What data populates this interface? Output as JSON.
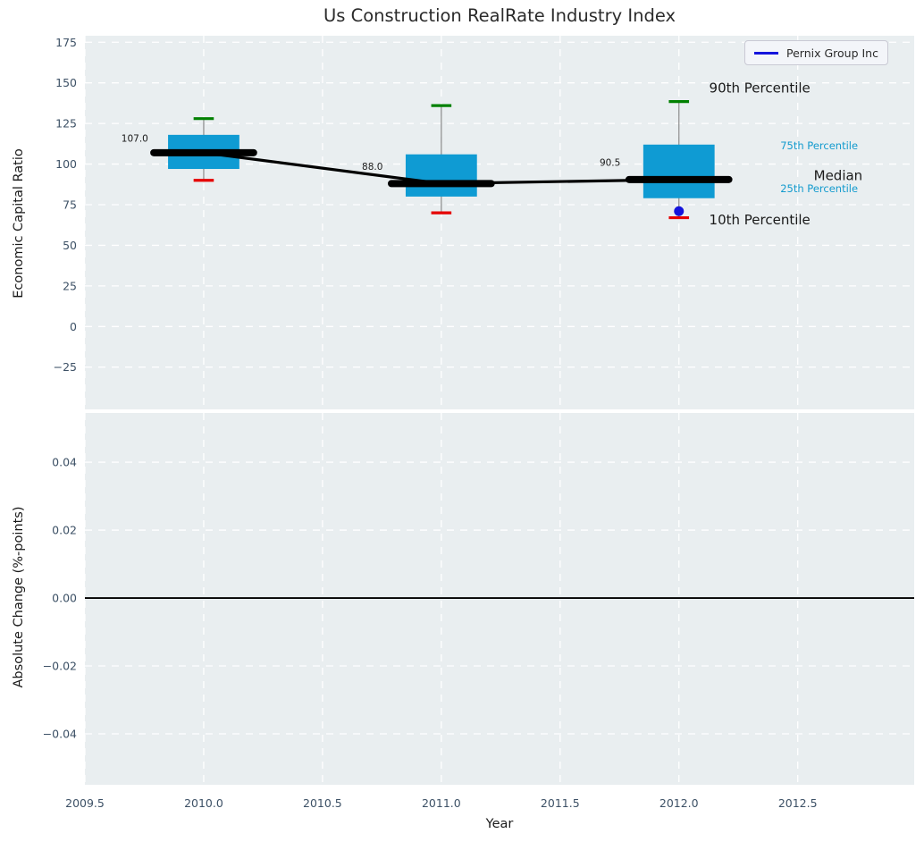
{
  "figure": {
    "title": "Us Construction RealRate Industry Index",
    "legend": {
      "label": "Pernix Group Inc"
    },
    "colors": {
      "plot_bg": "#e9eef0",
      "grid": "#ffffff",
      "box_fill": "#0f9bd3",
      "median": "#000000",
      "trend_line": "#000000",
      "whisker": "#8a8a8a",
      "p90_cap": "#008000",
      "p10_cap": "#e50000",
      "company": "#1414dc",
      "tick_label": "#3d5166",
      "annotation_dark": "#1a1a1a",
      "annotation_accent": "#149bce",
      "zero_line": "#000000"
    }
  },
  "chart_data": [
    {
      "type": "boxplot-timeseries",
      "title": "Us Construction RealRate Industry Index",
      "ylabel": "Economic Capital Ratio",
      "xlabel": "",
      "xlim": [
        2009.5,
        2012.99
      ],
      "ylim": [
        -51,
        179
      ],
      "grid": true,
      "legend_position": "upper right",
      "xticks": {
        "values": [
          2009.5,
          2010.0,
          2010.5,
          2011.0,
          2011.5,
          2012.0,
          2012.5
        ],
        "labels": [
          "2009.5",
          "2010.0",
          "2010.5",
          "2011.0",
          "2011.5",
          "2012.0",
          "2012.5"
        ],
        "show_labels": false
      },
      "yticks": {
        "values": [
          -25,
          0,
          25,
          50,
          75,
          100,
          125,
          150,
          175
        ],
        "labels": [
          "−25",
          "0",
          "25",
          "50",
          "75",
          "100",
          "125",
          "150",
          "175"
        ]
      },
      "boxes": [
        {
          "year": 2010,
          "p10": 90,
          "p25": 97,
          "median": 107.0,
          "p75": 118,
          "p90": 128
        },
        {
          "year": 2011,
          "p10": 70,
          "p25": 80,
          "median": 88.0,
          "p75": 106,
          "p90": 136
        },
        {
          "year": 2012,
          "p10": 67,
          "p25": 79,
          "median": 90.5,
          "p75": 112,
          "p90": 138.5
        }
      ],
      "median_trend": {
        "x": [
          2010,
          2011,
          2012
        ],
        "y": [
          107.0,
          88.0,
          90.5
        ]
      },
      "company_series": {
        "name": "Pernix Group Inc",
        "points": [
          {
            "x": 2012,
            "y": 71
          }
        ]
      },
      "annotations": [
        {
          "text": "107.0",
          "x": 2009.71,
          "y": 116.0,
          "font_size": 10.5,
          "color": "dark"
        },
        {
          "text": "88.0",
          "x": 2010.71,
          "y": 98.5,
          "font_size": 10.5,
          "color": "dark"
        },
        {
          "text": "90.5",
          "x": 2011.71,
          "y": 101.0,
          "font_size": 10.5,
          "color": "dark"
        },
        {
          "text": "90th Percentile",
          "x": 2012.34,
          "y": 147.0,
          "font_size": 15,
          "color": "dark"
        },
        {
          "text": "75th Percentile",
          "x": 2012.59,
          "y": 111.5,
          "font_size": 11.5,
          "color": "accent"
        },
        {
          "text": "Median",
          "x": 2012.67,
          "y": 93.0,
          "font_size": 15,
          "color": "dark"
        },
        {
          "text": "25th Percentile",
          "x": 2012.59,
          "y": 85.0,
          "font_size": 11.5,
          "color": "accent"
        },
        {
          "text": "10th Percentile",
          "x": 2012.34,
          "y": 66.0,
          "font_size": 15,
          "color": "dark"
        }
      ]
    },
    {
      "type": "line",
      "ylabel": "Absolute Change (%-points)",
      "xlabel": "Year",
      "xlim": [
        2009.5,
        2012.99
      ],
      "ylim": [
        -0.055,
        0.0545
      ],
      "grid": true,
      "xticks": {
        "values": [
          2009.5,
          2010.0,
          2010.5,
          2011.0,
          2011.5,
          2012.0,
          2012.5
        ],
        "labels": [
          "2009.5",
          "2010.0",
          "2010.5",
          "2011.0",
          "2011.5",
          "2012.0",
          "2012.5"
        ],
        "show_labels": true
      },
      "yticks": {
        "values": [
          -0.04,
          -0.02,
          0.0,
          0.02,
          0.04
        ],
        "labels": [
          "−0.04",
          "−0.02",
          "0.00",
          "0.02",
          "0.04"
        ]
      },
      "zero_line": {
        "y": 0.0
      },
      "series": []
    }
  ]
}
